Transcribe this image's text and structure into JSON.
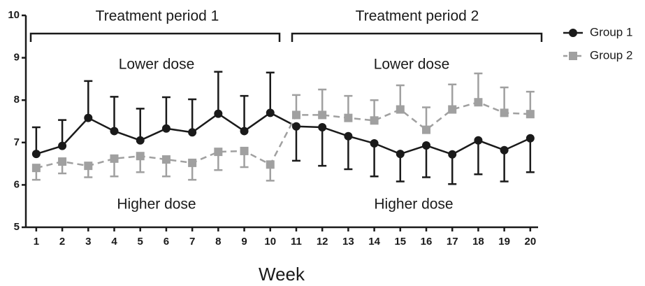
{
  "chart_data": {
    "type": "line",
    "xlabel": "Week",
    "annotations": [
      "Treatment period 1",
      "Treatment period 2",
      "Lower dose",
      "Higher dose",
      "Lower dose",
      "Higher dose"
    ],
    "x": [
      1,
      2,
      3,
      4,
      5,
      6,
      7,
      8,
      9,
      10,
      11,
      12,
      13,
      14,
      15,
      16,
      17,
      18,
      19,
      20
    ],
    "xlim": [
      0.6,
      20.3
    ],
    "xticks": [
      1,
      2,
      3,
      4,
      5,
      6,
      7,
      8,
      9,
      10,
      11,
      12,
      13,
      14,
      15,
      16,
      17,
      18,
      19,
      20
    ],
    "ylim": [
      5,
      10
    ],
    "yticks": [
      5,
      6,
      7,
      8,
      9,
      10
    ],
    "legend": "top-right",
    "series": [
      {
        "name": "Group 1",
        "color": "#1a1a1a",
        "marker": "circle",
        "dashed": false,
        "values": [
          6.73,
          6.92,
          7.58,
          7.27,
          7.05,
          7.33,
          7.24,
          7.68,
          7.27,
          7.7,
          7.38,
          7.36,
          7.15,
          6.98,
          6.73,
          6.93,
          6.72,
          7.05,
          6.82,
          7.1
        ],
        "errors": [
          0.63,
          0.61,
          0.87,
          0.81,
          0.75,
          0.74,
          0.78,
          0.99,
          0.83,
          0.95,
          0.81,
          0.91,
          0.78,
          0.78,
          0.65,
          0.75,
          0.7,
          0.8,
          0.74,
          0.8
        ]
      },
      {
        "name": "Group 2",
        "color": "#a0a0a0",
        "marker": "square",
        "dashed": true,
        "values": [
          6.4,
          6.55,
          6.45,
          6.62,
          6.68,
          6.6,
          6.52,
          6.78,
          6.8,
          6.48,
          7.65,
          7.65,
          7.58,
          7.52,
          7.78,
          7.3,
          7.78,
          7.95,
          7.7,
          7.67
        ],
        "errors": [
          0.28,
          0.28,
          0.27,
          0.42,
          0.38,
          0.4,
          0.4,
          0.43,
          0.38,
          0.38,
          0.47,
          0.6,
          0.52,
          0.48,
          0.57,
          0.53,
          0.59,
          0.68,
          0.6,
          0.53
        ]
      }
    ]
  }
}
